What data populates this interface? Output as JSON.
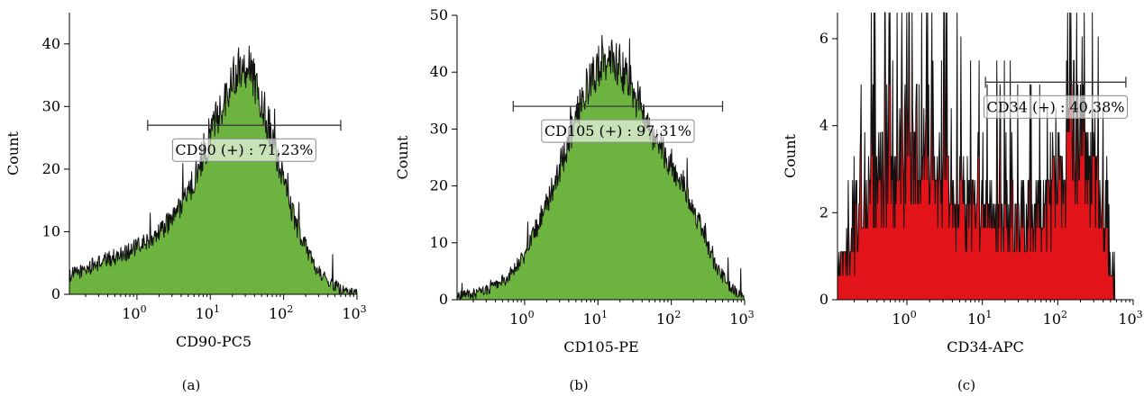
{
  "chart_data": [
    {
      "type": "area",
      "panel": "(a)",
      "xlabel": "CD90-PC5",
      "ylabel": "Count",
      "x_scale": "log",
      "xlim": [
        0.12,
        1000
      ],
      "ylim": [
        0,
        45
      ],
      "x_ticks": [
        {
          "value": 1,
          "base": "10",
          "exp": "0"
        },
        {
          "value": 10,
          "base": "10",
          "exp": "1"
        },
        {
          "value": 100,
          "base": "10",
          "exp": "2"
        },
        {
          "value": 1000,
          "base": "10",
          "exp": "3"
        }
      ],
      "y_ticks": [
        0,
        10,
        20,
        30,
        40
      ],
      "fill_color": "#6db33f",
      "outline_color": "#111111",
      "x": [
        0.12,
        0.2,
        0.3,
        0.5,
        0.8,
        1.2,
        2,
        3,
        5,
        8,
        12,
        18,
        25,
        35,
        50,
        70,
        100,
        150,
        250,
        400,
        650,
        1000
      ],
      "values": [
        3,
        4,
        5,
        6,
        7,
        8,
        10,
        12,
        16,
        22,
        28,
        33,
        37,
        36,
        31,
        25,
        18,
        11,
        5,
        2,
        0.5,
        0
      ],
      "gate": {
        "label": "CD90 (+) : 71,23%",
        "x_start": 1.4,
        "x_end": 600,
        "y": 27
      }
    },
    {
      "type": "area",
      "panel": "(b)",
      "xlabel": "CD105-PE",
      "ylabel": "Count",
      "x_scale": "log",
      "xlim": [
        0.12,
        1000
      ],
      "ylim": [
        0,
        50
      ],
      "x_ticks": [
        {
          "value": 1,
          "base": "10",
          "exp": "0"
        },
        {
          "value": 10,
          "base": "10",
          "exp": "1"
        },
        {
          "value": 100,
          "base": "10",
          "exp": "2"
        },
        {
          "value": 1000,
          "base": "10",
          "exp": "3"
        }
      ],
      "y_ticks": [
        0,
        10,
        20,
        30,
        40,
        50
      ],
      "fill_color": "#6db33f",
      "outline_color": "#111111",
      "x": [
        0.12,
        0.2,
        0.35,
        0.6,
        1,
        1.5,
        2.5,
        4,
        6,
        9,
        13,
        20,
        30,
        45,
        70,
        100,
        150,
        250,
        400,
        650,
        1000
      ],
      "values": [
        0.5,
        1,
        2,
        4,
        8,
        13,
        20,
        28,
        35,
        40,
        42,
        41,
        37,
        32,
        27,
        24,
        20,
        13,
        6,
        2,
        0
      ],
      "gate": {
        "label": "CD105 (+) : 97,31%",
        "x_start": 0.7,
        "x_end": 500,
        "y": 34
      }
    },
    {
      "type": "area",
      "panel": "(c)",
      "xlabel": "CD34-APC",
      "ylabel": "Count",
      "x_scale": "log",
      "xlim": [
        0.12,
        1000
      ],
      "ylim": [
        0,
        6.6
      ],
      "x_ticks": [
        {
          "value": 1,
          "base": "10",
          "exp": "0"
        },
        {
          "value": 10,
          "base": "10",
          "exp": "1"
        },
        {
          "value": 100,
          "base": "10",
          "exp": "2"
        },
        {
          "value": 1000,
          "base": "10",
          "exp": "3"
        }
      ],
      "y_ticks": [
        0,
        2,
        4,
        6
      ],
      "fill_color": "#e3131a",
      "outline_color": "#111111",
      "x": [
        0.12,
        0.2,
        0.3,
        0.5,
        0.7,
        1,
        1.5,
        2,
        3,
        5,
        8,
        12,
        20,
        30,
        50,
        80,
        120,
        200,
        300,
        450,
        600
      ],
      "values": [
        0.5,
        1.2,
        2,
        2.6,
        3,
        3,
        3,
        2.7,
        2.3,
        2,
        1.6,
        1.6,
        1.6,
        1.6,
        1.6,
        1.8,
        2.4,
        3.4,
        2.6,
        1,
        0
      ],
      "gate": {
        "label": "CD34 (+) : 40,38%",
        "x_start": 11,
        "x_end": 800,
        "y": 5
      }
    }
  ]
}
